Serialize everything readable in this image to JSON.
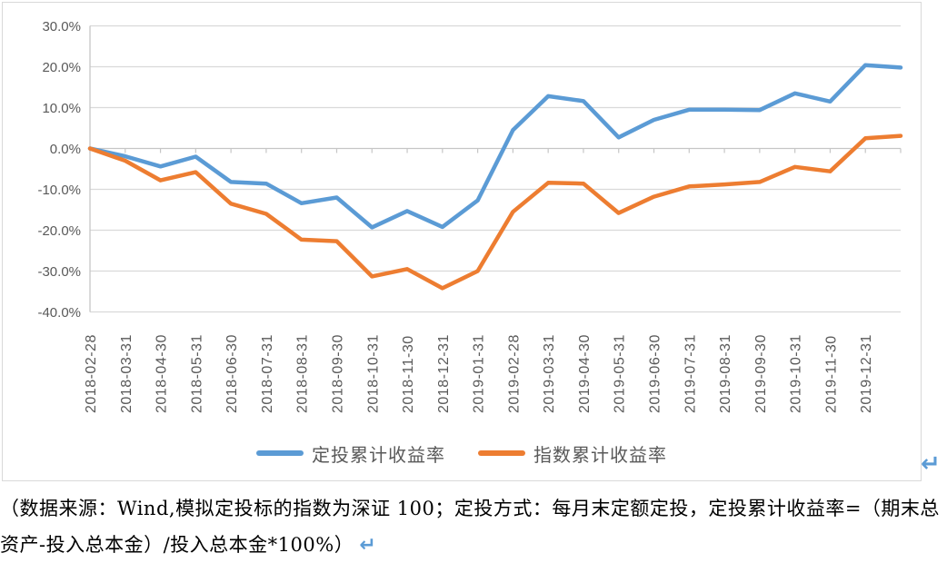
{
  "chart_data": {
    "type": "line",
    "title": "",
    "xlabel": "",
    "ylabel": "",
    "ylim": [
      -40,
      30
    ],
    "grid": true,
    "legend_position": "bottom",
    "y_ticks": [
      {
        "value": 30,
        "label": "30.0%"
      },
      {
        "value": 20,
        "label": "20.0%"
      },
      {
        "value": 10,
        "label": "10.0%"
      },
      {
        "value": 0,
        "label": "0.0%"
      },
      {
        "value": -10,
        "label": "-10.0%"
      },
      {
        "value": -20,
        "label": "-20.0%"
      },
      {
        "value": -30,
        "label": "-30.0%"
      },
      {
        "value": -40,
        "label": "-40.0%"
      }
    ],
    "categories": [
      "2018-02-28",
      "2018-03-31",
      "2018-04-30",
      "2018-05-31",
      "2018-06-30",
      "2018-07-31",
      "2018-08-31",
      "2018-09-30",
      "2018-10-31",
      "2018-11-30",
      "2018-12-31",
      "2019-01-31",
      "2019-02-28",
      "2019-03-31",
      "2019-04-30",
      "2019-05-31",
      "2019-06-30",
      "2019-07-31",
      "2019-08-31",
      "2019-09-30",
      "2019-10-31",
      "2019-11-30",
      "2019-12-31",
      ""
    ],
    "series": [
      {
        "name": "定投累计收益率",
        "color": "#5b9bd5",
        "values": [
          0.0,
          -1.9,
          -4.4,
          -2.0,
          -8.2,
          -8.6,
          -13.4,
          -12.0,
          -19.3,
          -15.3,
          -19.2,
          -12.7,
          4.5,
          12.8,
          11.6,
          2.7,
          7.0,
          9.5,
          9.5,
          9.4,
          13.5,
          11.5,
          20.4,
          19.8
        ]
      },
      {
        "name": "指数累计收益率",
        "color": "#ed7d31",
        "values": [
          0.0,
          -3.0,
          -7.8,
          -5.8,
          -13.5,
          -16.0,
          -22.3,
          -22.7,
          -31.3,
          -29.5,
          -34.2,
          -30.0,
          -15.5,
          -8.4,
          -8.6,
          -15.8,
          -11.8,
          -9.3,
          -8.8,
          -8.2,
          -4.5,
          -5.6,
          2.5,
          3.1
        ]
      }
    ],
    "axis_color": "#c6c6c6",
    "gridline_color": "#d9d9d9",
    "tick_label_color": "#595959"
  },
  "caption": {
    "line1": "（数据来源：Wind,模拟定投标的指数为深证 100；定投方式：每月末定额定投，定投累计收益率=（期末总",
    "line2": "资产-投入总本金）/投入总本金*100%）",
    "return_mark": "↵"
  },
  "page": {
    "chart_return_mark": "↵"
  }
}
